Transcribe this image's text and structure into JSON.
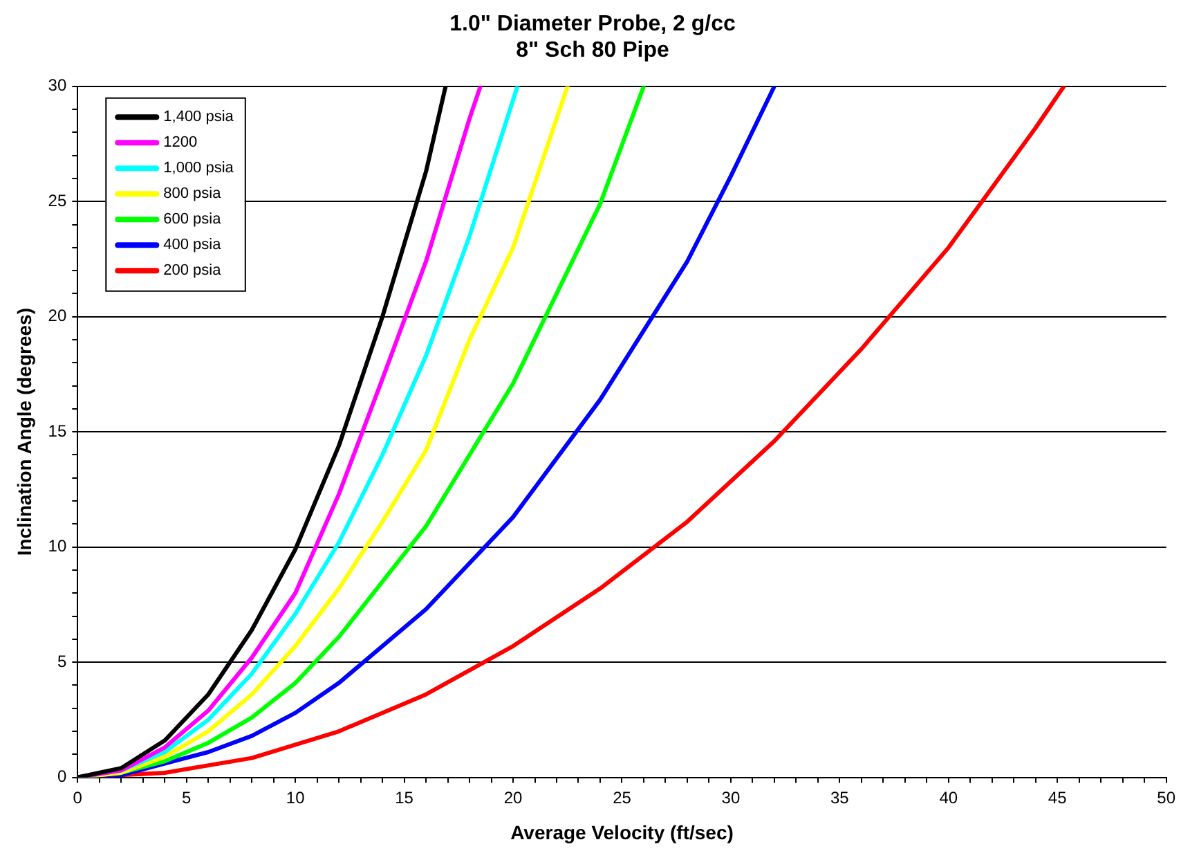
{
  "chart_data": {
    "type": "line",
    "title": "1.0\" Diameter Probe, 2 g/cc\n8\" Sch 80 Pipe",
    "xlabel": "Average Velocity (ft/sec)",
    "ylabel": "Inclination Angle (degrees)",
    "xlim": [
      0,
      50
    ],
    "ylim": [
      0,
      30
    ],
    "xticks": [
      0,
      {
        "value": 1,
        "label": null
      },
      {
        "value": 2,
        "label": null
      },
      {
        "value": 3,
        "label": null
      },
      {
        "value": 4,
        "label": null
      },
      5,
      {
        "value": 6,
        "label": null
      },
      {
        "value": 7,
        "label": null
      },
      {
        "value": 8,
        "label": null
      },
      {
        "value": 9,
        "label": null
      },
      10,
      {
        "value": 11,
        "label": null
      },
      {
        "value": 12,
        "label": null
      },
      {
        "value": 13,
        "label": null
      },
      {
        "value": 14,
        "label": null
      },
      15,
      {
        "value": 16,
        "label": null
      },
      {
        "value": 17,
        "label": null
      },
      {
        "value": 18,
        "label": null
      },
      {
        "value": 19,
        "label": null
      },
      20,
      {
        "value": 21,
        "label": null
      },
      {
        "value": 22,
        "label": null
      },
      {
        "value": 23,
        "label": null
      },
      {
        "value": 24,
        "label": null
      },
      25,
      {
        "value": 26,
        "label": null
      },
      {
        "value": 27,
        "label": null
      },
      {
        "value": 28,
        "label": null
      },
      {
        "value": 29,
        "label": null
      },
      30,
      {
        "value": 31,
        "label": null
      },
      {
        "value": 32,
        "label": null
      },
      {
        "value": 33,
        "label": null
      },
      {
        "value": 34,
        "label": null
      },
      35,
      {
        "value": 36,
        "label": null
      },
      {
        "value": 37,
        "label": null
      },
      {
        "value": 38,
        "label": null
      },
      {
        "value": 39,
        "label": null
      },
      40,
      {
        "value": 41,
        "label": null
      },
      {
        "value": 42,
        "label": null
      },
      {
        "value": 43,
        "label": null
      },
      {
        "value": 44,
        "label": null
      },
      45,
      {
        "value": 46,
        "label": null
      },
      {
        "value": 47,
        "label": null
      },
      {
        "value": 48,
        "label": null
      },
      {
        "value": 49,
        "label": null
      },
      50
    ],
    "yticks": [
      0,
      {
        "value": 1,
        "label": null
      },
      {
        "value": 2,
        "label": null
      },
      {
        "value": 3,
        "label": null
      },
      {
        "value": 4,
        "label": null
      },
      5,
      {
        "value": 6,
        "label": null
      },
      {
        "value": 7,
        "label": null
      },
      {
        "value": 8,
        "label": null
      },
      {
        "value": 9,
        "label": null
      },
      10,
      {
        "value": 11,
        "label": null
      },
      {
        "value": 12,
        "label": null
      },
      {
        "value": 13,
        "label": null
      },
      {
        "value": 14,
        "label": null
      },
      15,
      {
        "value": 16,
        "label": null
      },
      {
        "value": 17,
        "label": null
      },
      {
        "value": 18,
        "label": null
      },
      {
        "value": 19,
        "label": null
      },
      20,
      {
        "value": 21,
        "label": null
      },
      {
        "value": 22,
        "label": null
      },
      {
        "value": 23,
        "label": null
      },
      {
        "value": 24,
        "label": null
      },
      25,
      {
        "value": 26,
        "label": null
      },
      {
        "value": 27,
        "label": null
      },
      {
        "value": 28,
        "label": null
      },
      {
        "value": 29,
        "label": null
      },
      30
    ],
    "grid": "y",
    "legend": "top left",
    "marker": "none",
    "line_style": "solid",
    "series": [
      {
        "name": "1,400 psia",
        "color": "#000000",
        "x": [
          0,
          2,
          4,
          6,
          8,
          10,
          12,
          14,
          16,
          16.9
        ],
        "values": [
          0,
          0.4,
          1.6,
          3.6,
          6.4,
          9.9,
          14.4,
          20,
          26.3,
          30
        ]
      },
      {
        "name": "1200",
        "color": "#ff00ff",
        "x": [
          0,
          2,
          4,
          6,
          8,
          10,
          12,
          14,
          16,
          18,
          18.5
        ],
        "values": [
          0,
          0.3,
          1.3,
          2.9,
          5.2,
          8,
          12.3,
          17.3,
          22.4,
          28.6,
          30
        ]
      },
      {
        "name": "1,000 psia",
        "color": "#00ffff",
        "x": [
          0,
          2,
          4,
          6,
          8,
          10,
          12,
          14,
          16,
          18,
          20.2
        ],
        "values": [
          0,
          0.3,
          1.1,
          2.5,
          4.5,
          7.1,
          10.2,
          14,
          18.3,
          23.5,
          30
        ]
      },
      {
        "name": "800 psia",
        "color": "#ffff00",
        "x": [
          0,
          2,
          4,
          6,
          8,
          10,
          12,
          14,
          16,
          18,
          20,
          22,
          22.5
        ],
        "values": [
          0,
          0.2,
          0.9,
          2,
          3.6,
          5.7,
          8.2,
          11.1,
          14.2,
          19,
          23,
          28.6,
          30
        ]
      },
      {
        "name": "600 psia",
        "color": "#00ff00",
        "x": [
          0,
          2,
          4,
          6,
          8,
          10,
          12,
          16,
          20,
          24,
          26
        ],
        "values": [
          0,
          0.2,
          0.7,
          1.5,
          2.6,
          4.1,
          6.1,
          10.9,
          17.1,
          24.9,
          30
        ]
      },
      {
        "name": "400 psia",
        "color": "#0000ff",
        "x": [
          0,
          2,
          4,
          6,
          8,
          10,
          12,
          16,
          20,
          24,
          28,
          30,
          32
        ],
        "values": [
          0,
          0.1,
          0.6,
          1.1,
          1.8,
          2.8,
          4.1,
          7.3,
          11.3,
          16.4,
          22.4,
          26.1,
          30
        ]
      },
      {
        "name": "200 psia",
        "color": "#ff0000",
        "x": [
          0,
          4,
          8,
          12,
          16,
          20,
          24,
          28,
          32,
          36,
          40,
          44,
          45.3
        ],
        "values": [
          0,
          0.2,
          0.84,
          2,
          3.6,
          5.7,
          8.2,
          11.1,
          14.6,
          18.6,
          23,
          28.2,
          30
        ]
      }
    ]
  }
}
